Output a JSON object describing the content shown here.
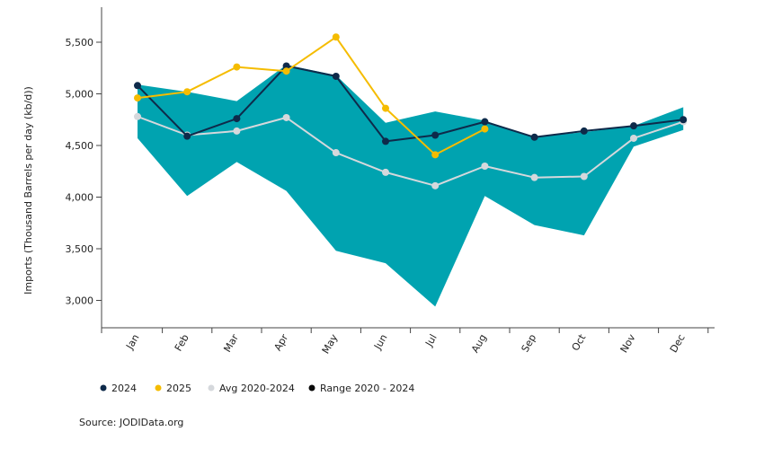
{
  "chart_data": {
    "type": "line",
    "title": "",
    "xlabel": "",
    "ylabel": "Imports (Thousand Barrels per day (kb/d))",
    "categories": [
      "Jan",
      "Feb",
      "Mar",
      "Apr",
      "May",
      "Jun",
      "Jul",
      "Aug",
      "Sep",
      "Oct",
      "Nov",
      "Dec"
    ],
    "ylim": [
      2800,
      5800
    ],
    "yticks": [
      3000,
      3500,
      4000,
      4500,
      5000,
      5500
    ],
    "ytick_labels": [
      "3,000",
      "3,500",
      "4,000",
      "4,500",
      "5,000",
      "5,500"
    ],
    "range": {
      "name": "Range 2020 - 2024",
      "min": [
        4570,
        4010,
        4340,
        4060,
        3480,
        3360,
        2940,
        4010,
        3730,
        3630,
        4490,
        4650
      ],
      "max": [
        5090,
        5020,
        4930,
        5280,
        5180,
        4720,
        4830,
        4740,
        4580,
        4630,
        4690,
        4870
      ],
      "color": "#00a3b0"
    },
    "series": [
      {
        "name": "2024",
        "color": "#0e2a4a",
        "values": [
          5080,
          4590,
          4760,
          5270,
          5170,
          4540,
          4600,
          4730,
          4580,
          4640,
          4690,
          4750
        ]
      },
      {
        "name": "2025",
        "color": "#f5bc00",
        "values": [
          4960,
          5020,
          5260,
          5220,
          5550,
          4860,
          4410,
          4660,
          null,
          null,
          null,
          null
        ]
      },
      {
        "name": "Avg 2020-2024",
        "color": "#d5d8dc",
        "values": [
          4780,
          4600,
          4640,
          4770,
          4430,
          4240,
          4110,
          4300,
          4190,
          4200,
          4570,
          4730
        ]
      }
    ],
    "legend": [
      {
        "label": "2024",
        "color": "#0e2a4a"
      },
      {
        "label": "2025",
        "color": "#f5bc00"
      },
      {
        "label": "Avg 2020-2024",
        "color": "#d5d8dc"
      },
      {
        "label": "Range 2020 - 2024",
        "color": "#0a0a0a"
      }
    ],
    "legend_position": "bottom-left",
    "grid": false
  },
  "source": "Source: JODIData.org"
}
